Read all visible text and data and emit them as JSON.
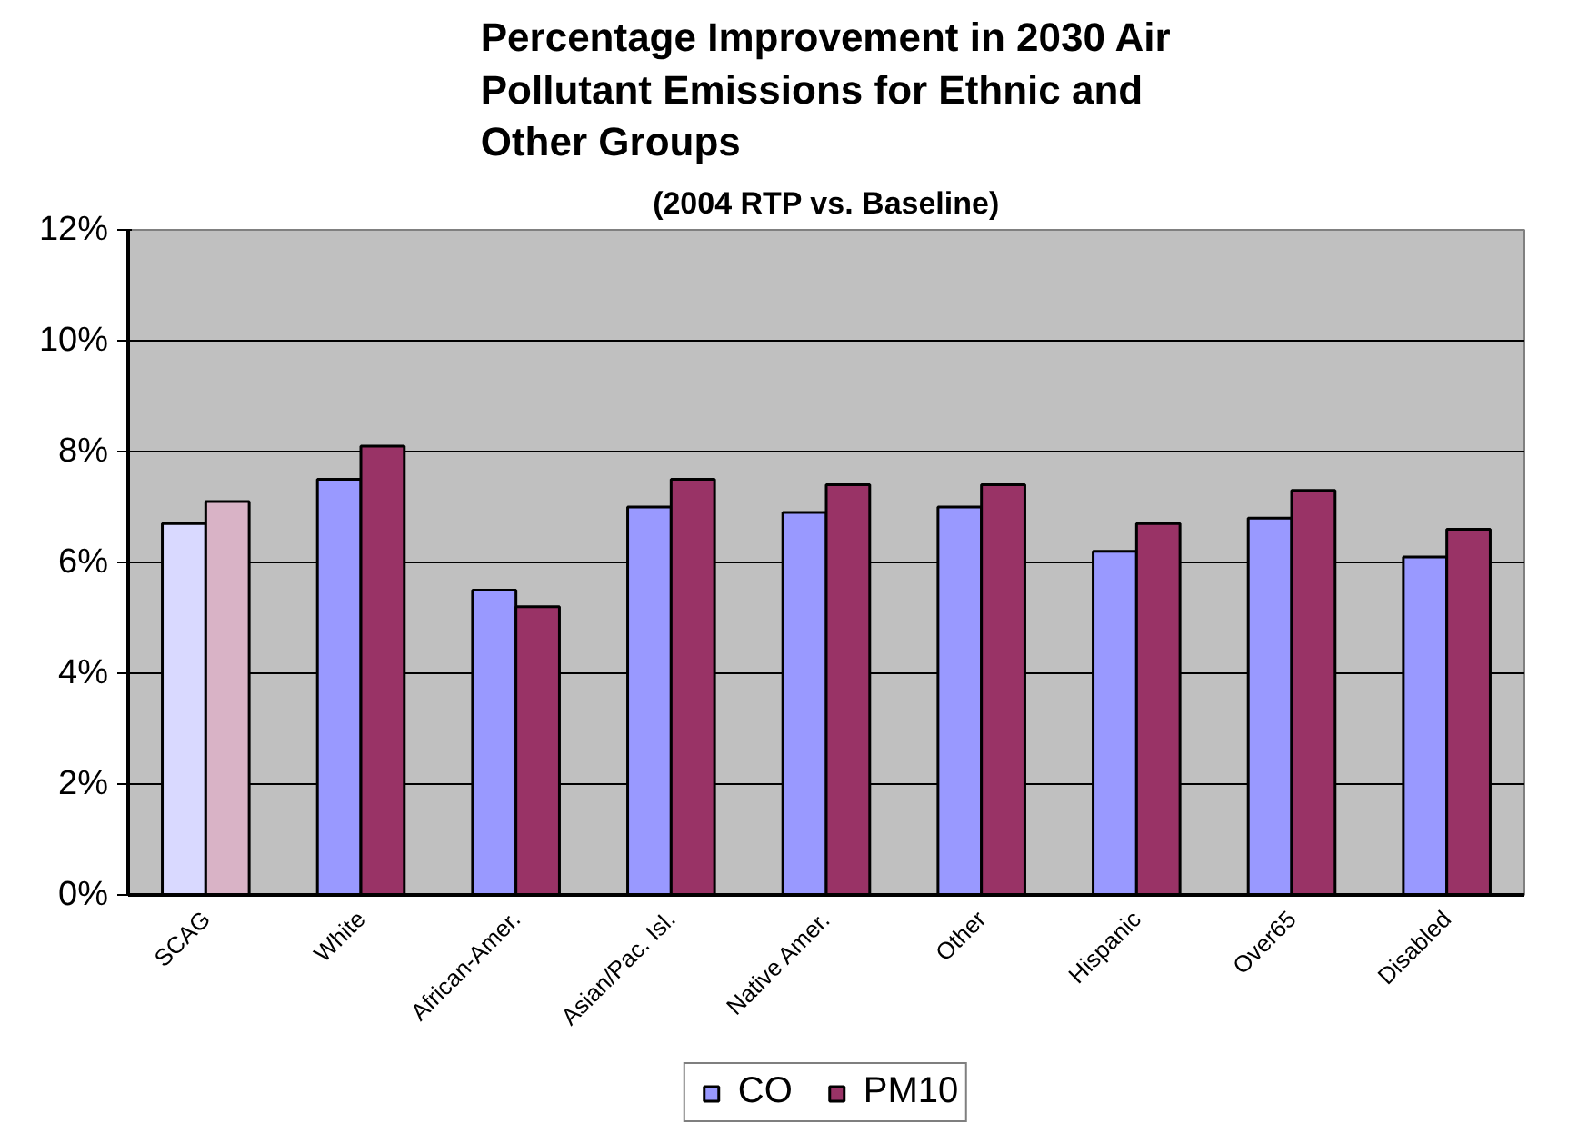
{
  "chart_data": {
    "type": "bar",
    "title": "Percentage Improvement in 2030 Air Pollutant Emissions for Ethnic and Other Groups",
    "subtitle": "(2004 RTP vs. Baseline)",
    "categories": [
      "SCAG",
      "White",
      "African-Amer.",
      "Asian/Pac. Isl.",
      "Native Amer.",
      "Other",
      "Hispanic",
      "Over65",
      "Disabled"
    ],
    "series": [
      {
        "name": "CO",
        "color": "#9999ff",
        "colors": [
          "#d9d9ff",
          "#9999ff",
          "#9999ff",
          "#9999ff",
          "#9999ff",
          "#9999ff",
          "#9999ff",
          "#9999ff",
          "#9999ff"
        ],
        "values": [
          6.7,
          7.5,
          5.5,
          7.0,
          6.9,
          7.0,
          6.2,
          6.8,
          6.1
        ]
      },
      {
        "name": "PM10",
        "color": "#993366",
        "colors": [
          "#d9b3c6",
          "#993366",
          "#993366",
          "#993366",
          "#993366",
          "#993366",
          "#993366",
          "#993366",
          "#993366"
        ],
        "values": [
          7.1,
          8.1,
          5.2,
          7.5,
          7.4,
          7.4,
          6.7,
          7.3,
          6.6
        ]
      }
    ],
    "ylim": [
      0,
      12
    ],
    "yticks": [
      {
        "value": 0,
        "label": "0%"
      },
      {
        "value": 2,
        "label": "2%"
      },
      {
        "value": 4,
        "label": "4%"
      },
      {
        "value": 6,
        "label": "6%"
      },
      {
        "value": 8,
        "label": "8%"
      },
      {
        "value": 10,
        "label": "10%"
      },
      {
        "value": 12,
        "label": "12%"
      }
    ],
    "grid": "y",
    "legend": "bottom"
  }
}
